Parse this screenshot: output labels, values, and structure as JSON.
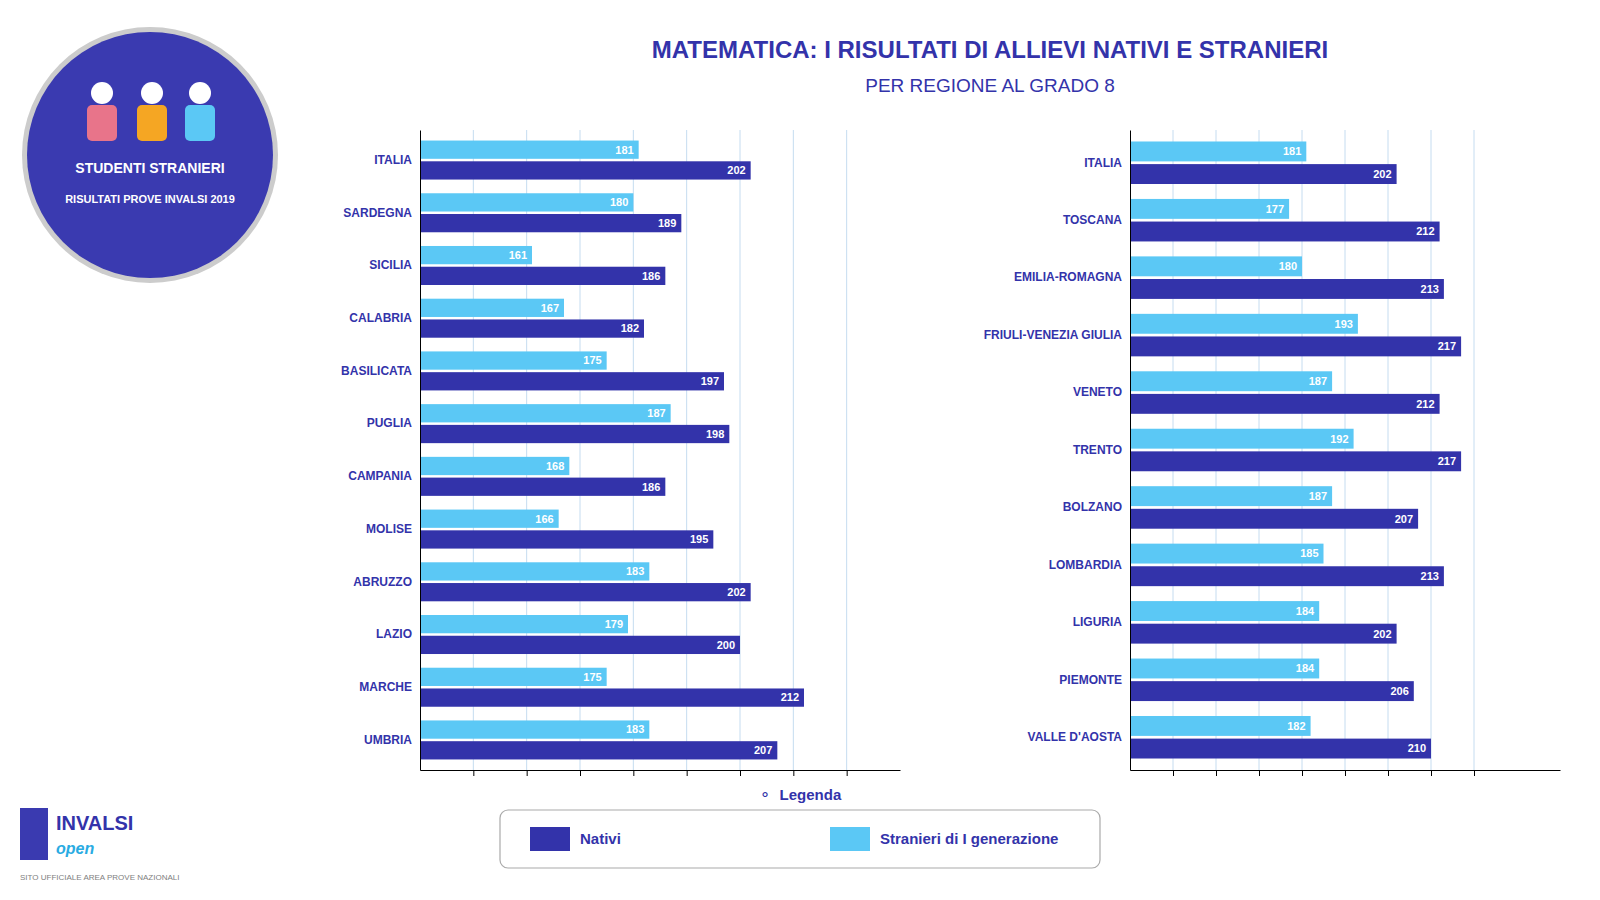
{
  "chart_data": [
    {
      "type": "bar",
      "orientation": "horizontal",
      "title": "MATEMATICA: I RISULTATI DI ALLIEVI NATIVI E STRANIERI",
      "subtitle": "PER REGIONE AL GRADO 8",
      "annotations": [
        "STUDENTI STRANIERI",
        "RISULTATI PROVE INVALSI 2019",
        "INVALSI",
        "open",
        "SITO UFFICIALE AREA PROVE NAZIONALI",
        "⚬  Legenda"
      ],
      "categories": [
        "UMBRIA",
        "MARCHE",
        "LAZIO",
        "ABRUZZO",
        "MOLISE",
        "CAMPANIA",
        "PUGLIA",
        "BASILICATA",
        "CALABRIA",
        "SICILIA",
        "SARDEGNA",
        "ITALIA"
      ],
      "series": [
        {
          "name": "Nativi",
          "color": "#3333AA",
          "values": [
            207,
            212,
            200,
            202,
            195,
            186,
            198,
            197,
            182,
            186,
            189,
            202
          ]
        },
        {
          "name": "Stranieri di I generazione",
          "color": "#5BC8F5",
          "values": [
            183,
            175,
            179,
            183,
            166,
            168,
            187,
            175,
            167,
            161,
            180,
            181
          ]
        }
      ],
      "xlim": [
        140,
        230
      ],
      "xticks": [
        150,
        160,
        170,
        180,
        190,
        200,
        210,
        220
      ],
      "grid": true,
      "data_labels": true,
      "tick_labels": "y",
      "legend": "bottom"
    },
    {
      "type": "bar",
      "orientation": "horizontal",
      "categories": [
        "VALLE D'AOSTA",
        "PIEMONTE",
        "LIGURIA",
        "LOMBARDIA",
        "BOLZANO",
        "TRENTO",
        "VENETO",
        "FRIULI-VENEZIA GIULIA",
        "EMILIA-ROMAGNA",
        "TOSCANA",
        "ITALIA"
      ],
      "series": [
        {
          "color": "#3333AA",
          "values": [
            210,
            206,
            202,
            213,
            207,
            217,
            212,
            217,
            213,
            212,
            202
          ]
        },
        {
          "color": "#5BC8F5",
          "values": [
            182,
            184,
            184,
            185,
            187,
            192,
            187,
            193,
            180,
            177,
            181
          ]
        }
      ],
      "xlim": [
        140,
        240
      ],
      "xticks": [
        150,
        160,
        170,
        180,
        190,
        200,
        210,
        220
      ],
      "grid": true,
      "data_labels": true,
      "tick_labels": "y"
    }
  ]
}
